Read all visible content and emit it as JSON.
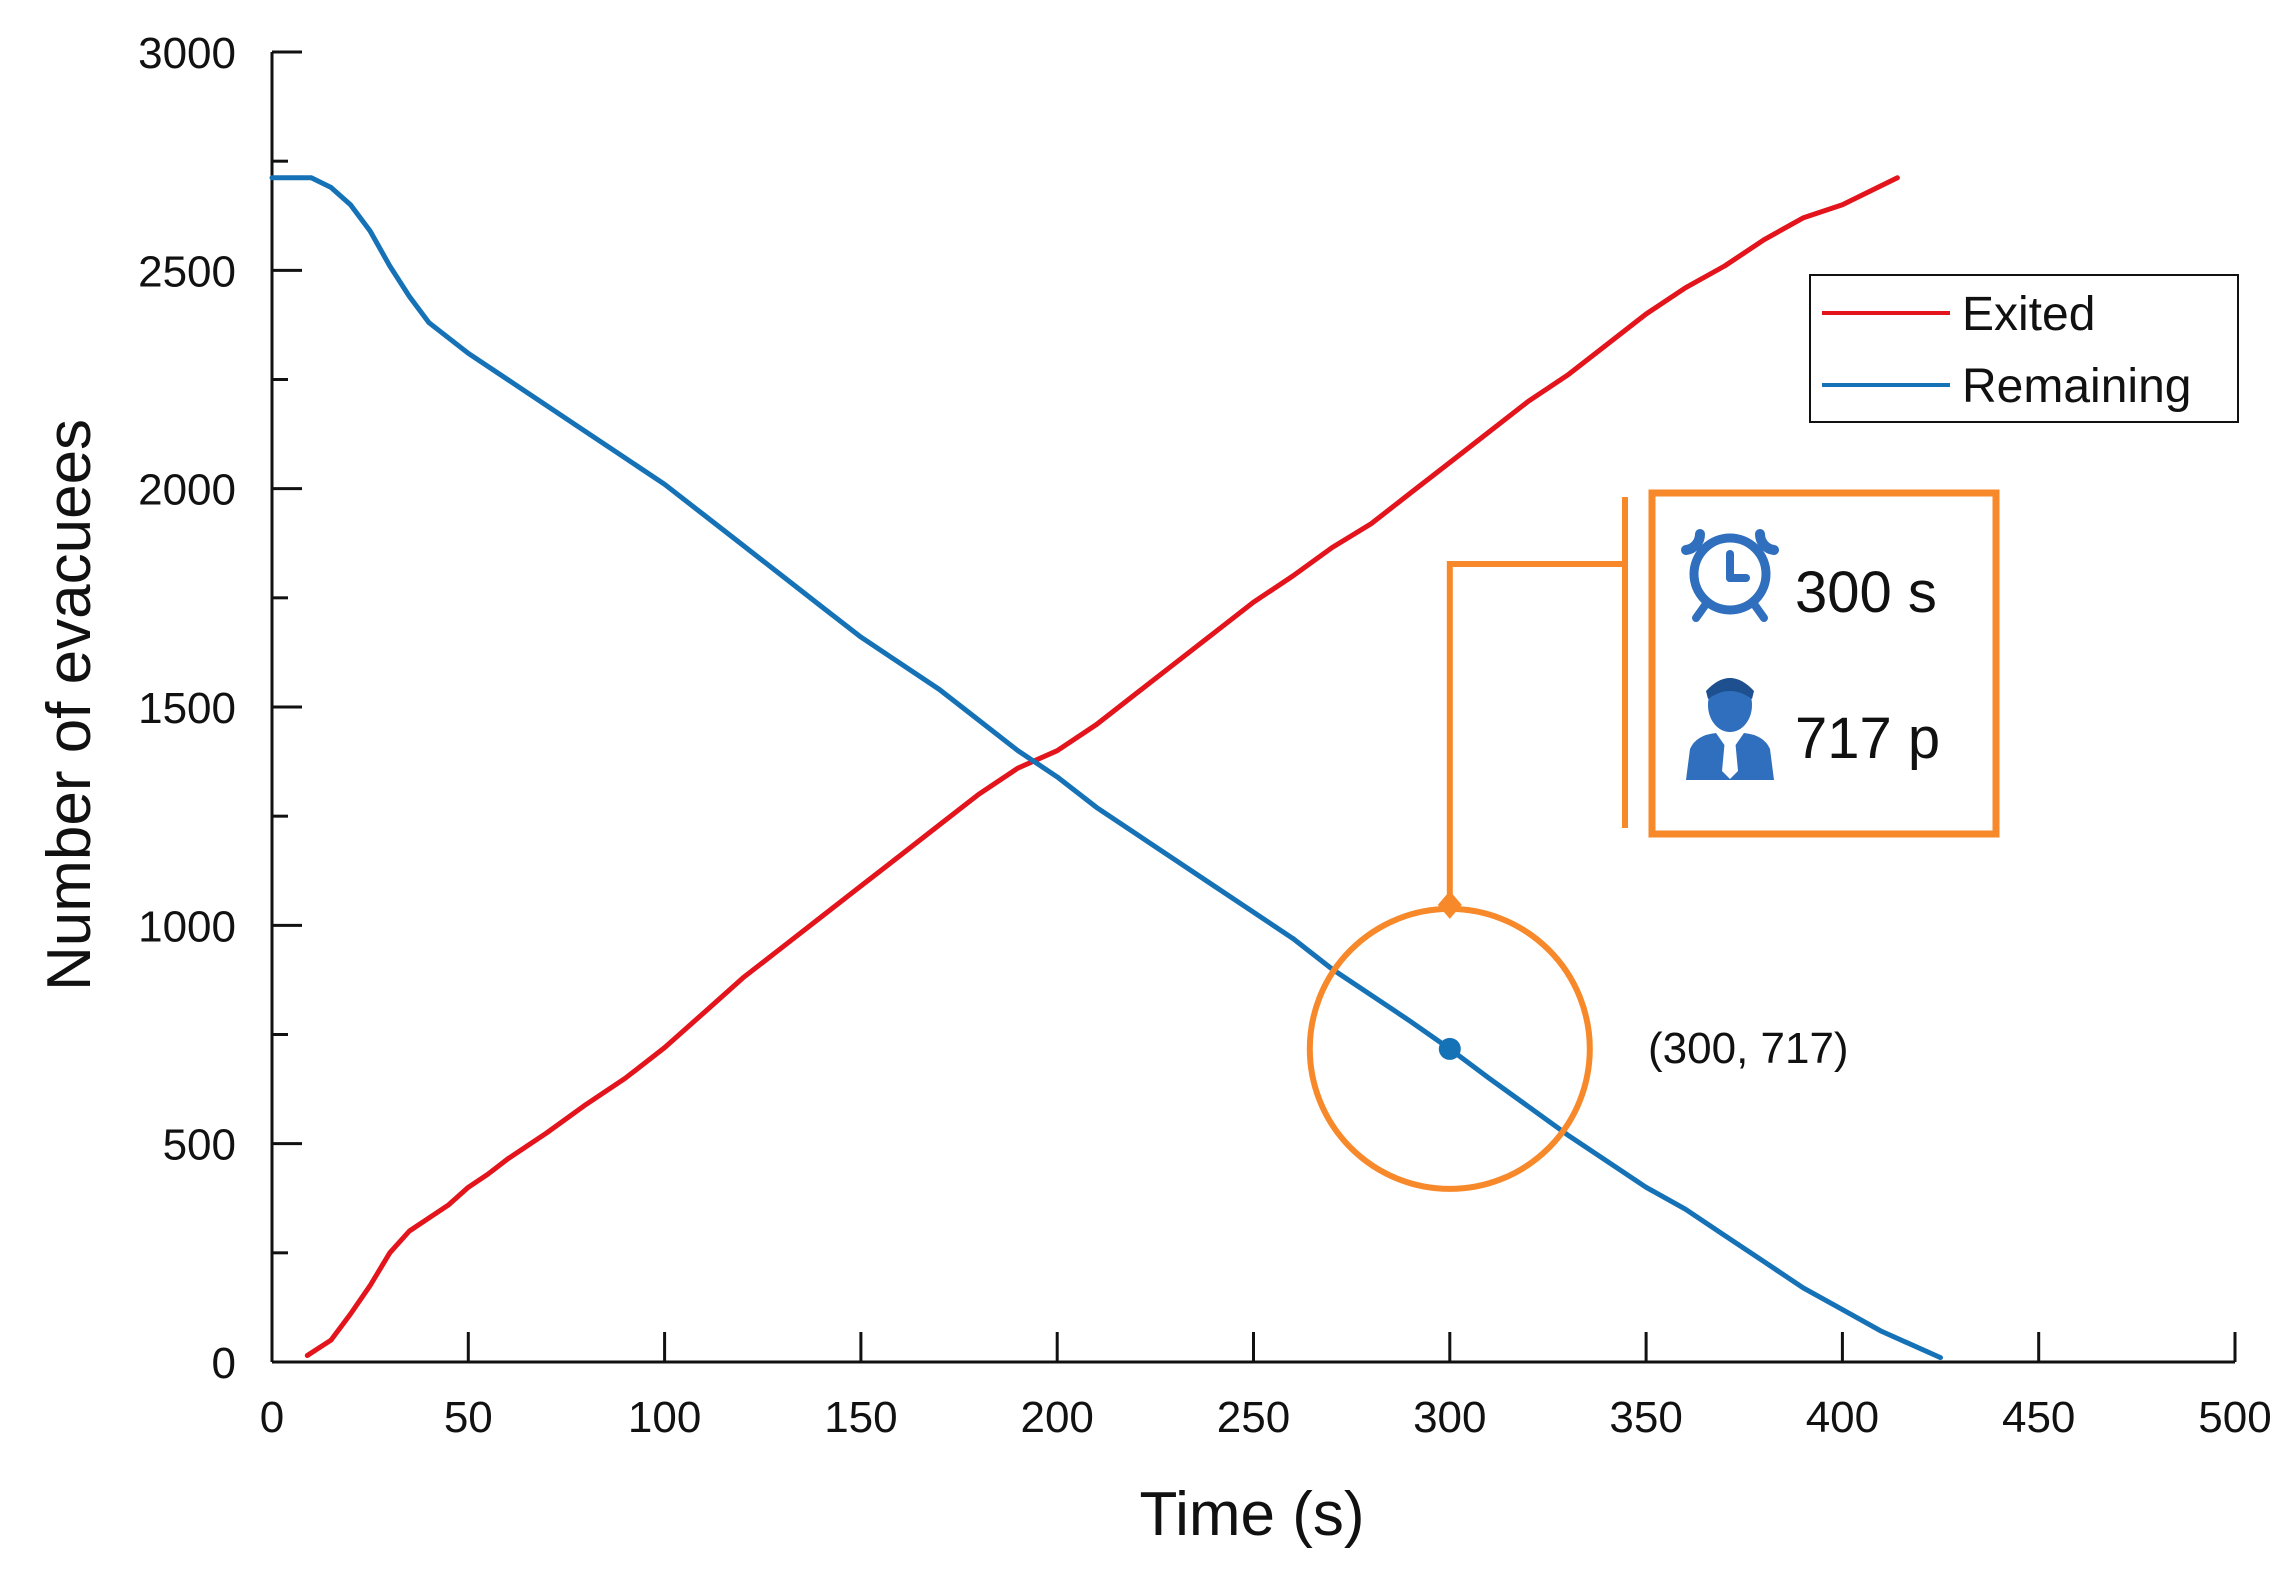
{
  "chart_data": {
    "type": "line",
    "title": "",
    "xlabel": "Time (s)",
    "ylabel": "Number of evacuees",
    "xlim": [
      0,
      500
    ],
    "ylim": [
      0,
      3000
    ],
    "x_major_ticks": [
      0,
      50,
      100,
      150,
      200,
      250,
      300,
      350,
      400,
      450,
      500
    ],
    "x_tick_labels": [
      "0",
      "50",
      "100",
      "150",
      "200",
      "250",
      "300",
      "350",
      "400",
      "450",
      "500"
    ],
    "y_major_ticks": [
      0,
      500,
      1000,
      1500,
      2000,
      2500,
      3000
    ],
    "y_tick_labels": [
      "0",
      "500",
      "1000",
      "1500",
      "2000",
      "2500",
      "3000"
    ],
    "grid": false,
    "legend_position": "top-right",
    "series": [
      {
        "name": "Exited",
        "color": "#e3141b",
        "x": [
          9,
          15,
          20,
          25,
          30,
          35,
          40,
          45,
          50,
          55,
          60,
          70,
          80,
          90,
          100,
          110,
          120,
          130,
          140,
          150,
          160,
          170,
          180,
          190,
          200,
          210,
          220,
          230,
          240,
          250,
          260,
          270,
          280,
          290,
          300,
          310,
          320,
          330,
          340,
          350,
          360,
          370,
          380,
          390,
          400,
          414
        ],
        "y": [
          15,
          50,
          110,
          175,
          250,
          300,
          330,
          360,
          400,
          430,
          465,
          525,
          590,
          650,
          720,
          800,
          880,
          950,
          1020,
          1090,
          1160,
          1230,
          1300,
          1360,
          1400,
          1460,
          1530,
          1600,
          1670,
          1740,
          1800,
          1865,
          1920,
          1990,
          2060,
          2130,
          2200,
          2260,
          2330,
          2400,
          2460,
          2510,
          2570,
          2620,
          2650,
          2712
        ]
      },
      {
        "name": "Remaining",
        "color": "#1572b6",
        "x": [
          0,
          10,
          15,
          20,
          25,
          30,
          35,
          40,
          50,
          60,
          70,
          80,
          90,
          100,
          110,
          120,
          130,
          140,
          150,
          160,
          170,
          180,
          190,
          200,
          210,
          220,
          230,
          240,
          250,
          260,
          270,
          280,
          290,
          300,
          310,
          320,
          330,
          340,
          350,
          360,
          370,
          380,
          390,
          400,
          410,
          425
        ],
        "y": [
          2712,
          2712,
          2690,
          2650,
          2590,
          2510,
          2440,
          2380,
          2310,
          2250,
          2190,
          2130,
          2070,
          2010,
          1940,
          1870,
          1800,
          1730,
          1660,
          1600,
          1540,
          1470,
          1400,
          1340,
          1270,
          1210,
          1150,
          1090,
          1030,
          970,
          900,
          840,
          780,
          717,
          650,
          585,
          520,
          460,
          400,
          350,
          290,
          230,
          170,
          120,
          70,
          10
        ]
      }
    ],
    "annotation": {
      "point": [
        300,
        717
      ],
      "point_label": "(300, 717)",
      "time_text": "300 s",
      "people_text": "717 p",
      "time_icon": "alarm-clock-icon",
      "people_icon": "person-icon",
      "accent_color": "#f7892b"
    }
  }
}
